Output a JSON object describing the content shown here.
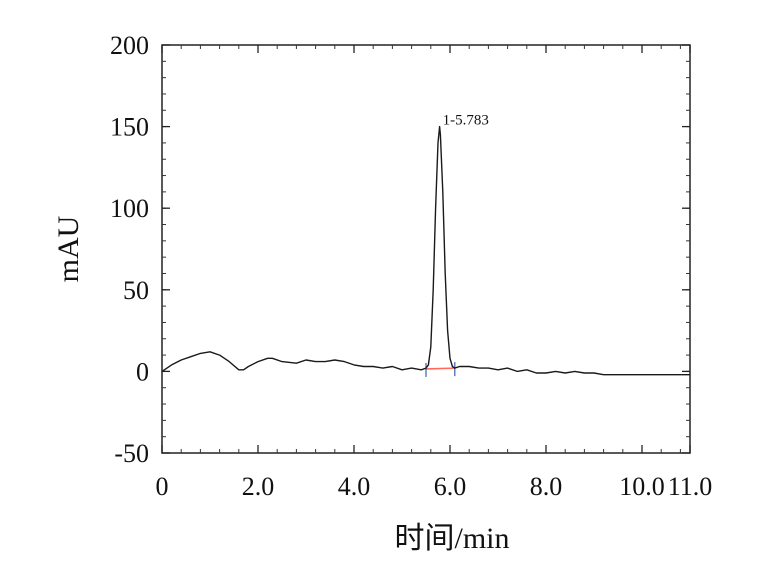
{
  "chart_data": {
    "type": "line",
    "title": "",
    "xlabel": "时间/min",
    "ylabel": "mAU",
    "xlim": [
      0,
      11.0
    ],
    "ylim": [
      -50,
      200
    ],
    "x_ticks": [
      0,
      2.0,
      4.0,
      6.0,
      8.0,
      10.0,
      11.0
    ],
    "x_tick_labels": [
      "0",
      "2.0",
      "4.0",
      "6.0",
      "8.0",
      "10.0",
      "11.0"
    ],
    "y_ticks": [
      -50,
      0,
      50,
      100,
      150,
      200
    ],
    "y_tick_labels": [
      "-50",
      "0",
      "50",
      "100",
      "150",
      "200"
    ],
    "grid": false,
    "series": [
      {
        "color": "#1a1a1a",
        "x": [
          0,
          0.2,
          0.4,
          0.6,
          0.8,
          1.0,
          1.2,
          1.4,
          1.6,
          1.7,
          1.8,
          2.0,
          2.2,
          2.3,
          2.5,
          2.8,
          3.0,
          3.2,
          3.4,
          3.6,
          3.8,
          4.0,
          4.2,
          4.4,
          4.6,
          4.8,
          5.0,
          5.2,
          5.4,
          5.5,
          5.55,
          5.6,
          5.65,
          5.7,
          5.75,
          5.783,
          5.8,
          5.85,
          5.9,
          5.95,
          6.0,
          6.05,
          6.1,
          6.2,
          6.4,
          6.6,
          6.8,
          7.0,
          7.2,
          7.4,
          7.6,
          7.8,
          8.0,
          8.2,
          8.4,
          8.6,
          8.8,
          9.0,
          9.2,
          9.4,
          9.6,
          10.0,
          10.5,
          11.0
        ],
        "y": [
          0,
          4,
          7,
          9,
          11,
          12,
          10,
          6,
          1,
          1,
          3,
          6,
          8,
          8,
          6,
          5,
          7,
          6,
          6,
          7,
          6,
          4,
          3,
          3,
          2,
          3,
          1,
          2,
          1,
          2,
          4,
          15,
          50,
          100,
          140,
          150,
          145,
          110,
          60,
          25,
          8,
          3,
          2,
          3,
          3,
          2,
          2,
          1,
          2,
          0,
          1,
          -1,
          -1,
          0,
          -1,
          0,
          -1,
          -1,
          -2,
          -2,
          -2,
          -2,
          -2,
          -2
        ]
      }
    ],
    "baseline": {
      "color": "#ff6a5a",
      "x": [
        5.5,
        6.1
      ],
      "y": [
        1.5,
        2.0
      ]
    },
    "peak_markers": [
      {
        "x": 5.5,
        "y": 1.5
      },
      {
        "x": 6.1,
        "y": 2.0
      }
    ],
    "annotations": [
      {
        "text": "1-5.783",
        "x": 5.783,
        "y": 150
      }
    ]
  }
}
